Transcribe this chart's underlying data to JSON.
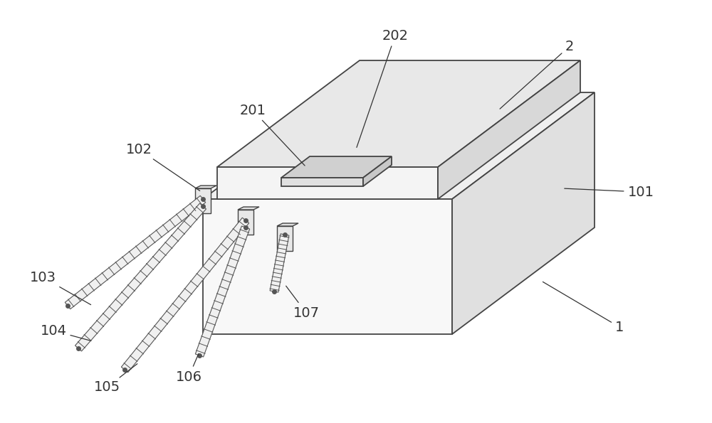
{
  "bg_color": "#ffffff",
  "line_color": "#444444",
  "top_fill": "#efefef",
  "front_fill": "#f8f8f8",
  "right_fill": "#e0e0e0",
  "chip_top_fill": "#e8e8e8",
  "chip_front_fill": "#f4f4f4",
  "chip_right_fill": "#d8d8d8",
  "gate_top_fill": "#d0d0d0",
  "gate_front_fill": "#e0e0e0",
  "gate_right_fill": "#c8c8c8",
  "wire_fill": "#f0f0f0",
  "wire_edge": "#555555",
  "bracket_fill": "#e8e8e8",
  "font_size": 14,
  "anno_color": "#333333",
  "lw": 1.3
}
